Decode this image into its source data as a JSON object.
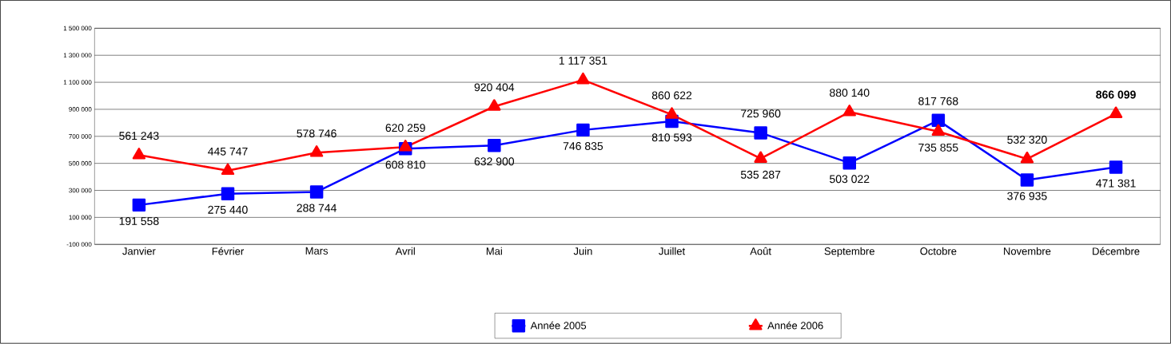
{
  "chart_data": {
    "type": "line",
    "categories": [
      "Janvier",
      "Février",
      "Mars",
      "Avril",
      "Mai",
      "Juin",
      "Juillet",
      "Août",
      "Septembre",
      "Octobre",
      "Novembre",
      "Décembre"
    ],
    "series": [
      {
        "name": "Année 2005",
        "color": "#0000ff",
        "marker": "square",
        "values": [
          191558,
          275440,
          288744,
          608810,
          632900,
          746835,
          810593,
          725960,
          503022,
          817768,
          376935,
          471381
        ],
        "value_labels": [
          "191 558",
          "275 440",
          "288 744",
          "608 810",
          "632 900",
          "746 835",
          "810 593",
          "725 960",
          "503 022",
          "817 768",
          "376 935",
          "471 381"
        ]
      },
      {
        "name": "Année 2006",
        "color": "#ff0000",
        "marker": "triangle",
        "values": [
          561243,
          445747,
          578746,
          620259,
          920404,
          1117351,
          860622,
          535287,
          880140,
          735855,
          532320,
          866099
        ],
        "value_labels": [
          "561 243",
          "445 747",
          "578 746",
          "620 259",
          "920 404",
          "1 117 351",
          "860 622",
          "535 287",
          "880 140",
          "735 855",
          "532 320",
          "**866 099**"
        ]
      }
    ],
    "ylim": [
      -100000,
      1500000
    ],
    "yticks": [
      {
        "value": -100000,
        "label": "-100 000"
      },
      {
        "value": 100000,
        "label": "100 000"
      },
      {
        "value": 300000,
        "label": "300 000"
      },
      {
        "value": 500000,
        "label": "500 000"
      },
      {
        "value": 700000,
        "label": "700 000"
      },
      {
        "value": 900000,
        "label": "900 000"
      },
      {
        "value": 1100000,
        "label": "1 100 000"
      },
      {
        "value": 1300000,
        "label": "1 300 000"
      },
      {
        "value": 1500000,
        "label": "1 500 000"
      }
    ],
    "grid": "y",
    "legend": "bottom",
    "line_style": "solid"
  }
}
